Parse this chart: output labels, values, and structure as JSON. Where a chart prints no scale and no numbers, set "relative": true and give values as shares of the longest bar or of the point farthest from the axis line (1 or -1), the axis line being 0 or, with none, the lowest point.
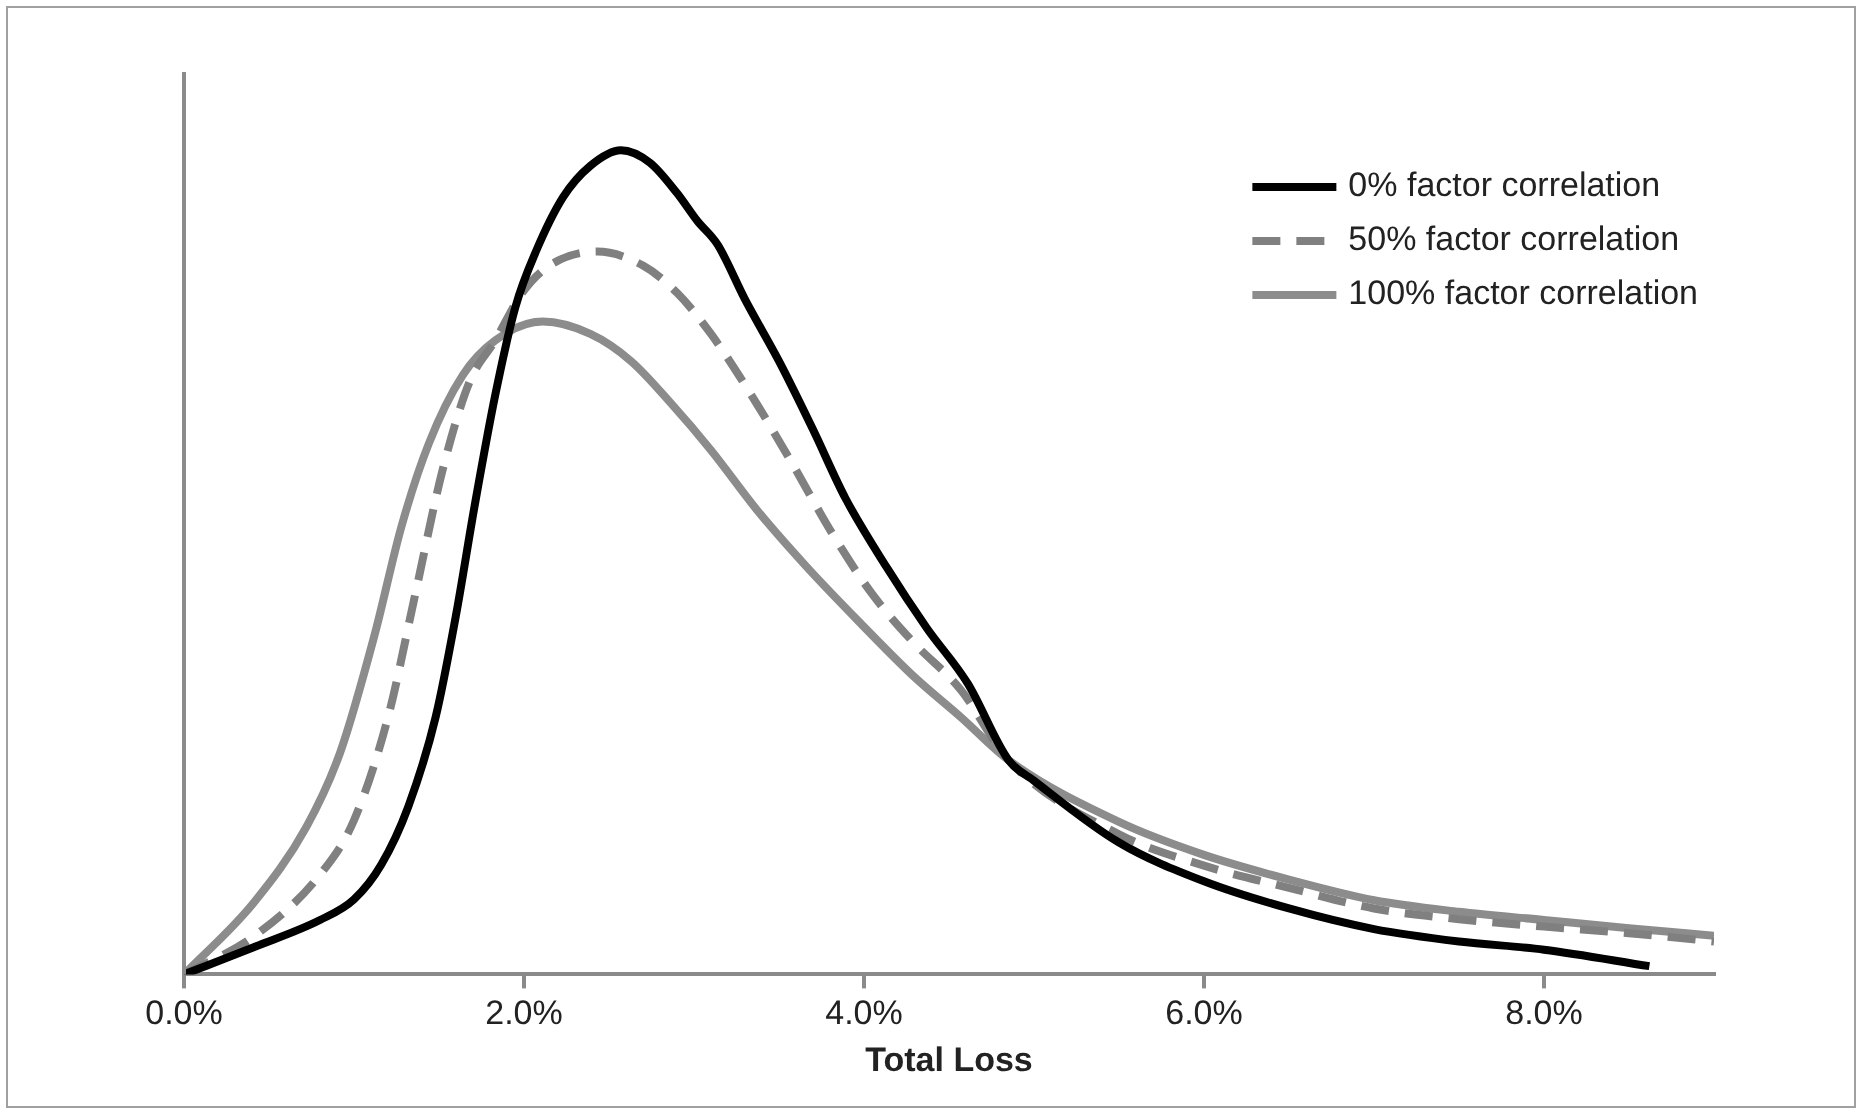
{
  "chart_data": {
    "type": "line",
    "xlabel": "Total Loss",
    "relative": true,
    "xlim": [
      0,
      9
    ],
    "xticks": [
      {
        "value": 0,
        "label": "0.0%"
      },
      {
        "value": 2,
        "label": "2.0%"
      },
      {
        "value": 4,
        "label": "4.0%"
      },
      {
        "value": 6,
        "label": "6.0%"
      },
      {
        "value": 8,
        "label": "8.0%"
      }
    ],
    "legend": "top right",
    "marker": "none",
    "grid": false,
    "series": [
      {
        "name": "0% factor correlation",
        "color": "#000000",
        "line_style": "solid",
        "x": [
          0,
          0.41,
          0.8,
          1.0,
          1.16,
          1.32,
          1.48,
          1.6,
          1.71,
          1.83,
          1.95,
          2.07,
          2.23,
          2.39,
          2.57,
          2.74,
          2.9,
          3.02,
          3.14,
          3.3,
          3.5,
          3.7,
          3.89,
          4.13,
          4.37,
          4.61,
          4.85,
          5.0,
          5.5,
          6.0,
          6.5,
          7.0,
          7.5,
          8.0,
          8.62
        ],
        "values": [
          0,
          0.033,
          0.066,
          0.091,
          0.133,
          0.204,
          0.312,
          0.436,
          0.569,
          0.702,
          0.81,
          0.877,
          0.943,
          0.981,
          1,
          0.985,
          0.948,
          0.914,
          0.885,
          0.819,
          0.744,
          0.661,
          0.578,
          0.495,
          0.42,
          0.353,
          0.26,
          0.235,
          0.16,
          0.113,
          0.08,
          0.055,
          0.04,
          0.03,
          0.01
        ]
      },
      {
        "name": "50% factor correlation",
        "color": "#808080",
        "line_style": "dashed",
        "x": [
          0,
          0.41,
          0.8,
          1.0,
          1.2,
          1.36,
          1.52,
          1.68,
          1.83,
          1.99,
          2.15,
          2.43,
          2.7,
          2.9,
          3.1,
          3.34,
          3.58,
          3.81,
          4.05,
          4.29,
          4.57,
          4.85,
          5.5,
          6.0,
          6.5,
          7.0,
          7.5,
          8.0,
          8.5,
          9.0
        ],
        "values": [
          0,
          0.046,
          0.121,
          0.187,
          0.312,
          0.461,
          0.611,
          0.719,
          0.769,
          0.827,
          0.86,
          0.877,
          0.86,
          0.827,
          0.777,
          0.702,
          0.619,
          0.536,
          0.461,
          0.403,
          0.345,
          0.26,
          0.17,
          0.132,
          0.105,
          0.08,
          0.067,
          0.058,
          0.05,
          0.04
        ]
      },
      {
        "name": "100% factor correlation",
        "color": "#8c8c8c",
        "line_style": "solid",
        "x": [
          0,
          0.41,
          0.72,
          0.92,
          1.12,
          1.28,
          1.44,
          1.64,
          1.83,
          2.11,
          2.39,
          2.63,
          2.86,
          3.1,
          3.38,
          3.66,
          3.97,
          4.29,
          4.57,
          4.85,
          5.5,
          6.0,
          6.5,
          7.0,
          7.5,
          8.0,
          8.5,
          9.0
        ],
        "values": [
          0,
          0.087,
          0.179,
          0.27,
          0.411,
          0.544,
          0.644,
          0.727,
          0.769,
          0.792,
          0.777,
          0.744,
          0.694,
          0.636,
          0.561,
          0.495,
          0.428,
          0.362,
          0.312,
          0.26,
          0.185,
          0.145,
          0.115,
          0.09,
          0.076,
          0.066,
          0.056,
          0.047
        ]
      }
    ]
  }
}
